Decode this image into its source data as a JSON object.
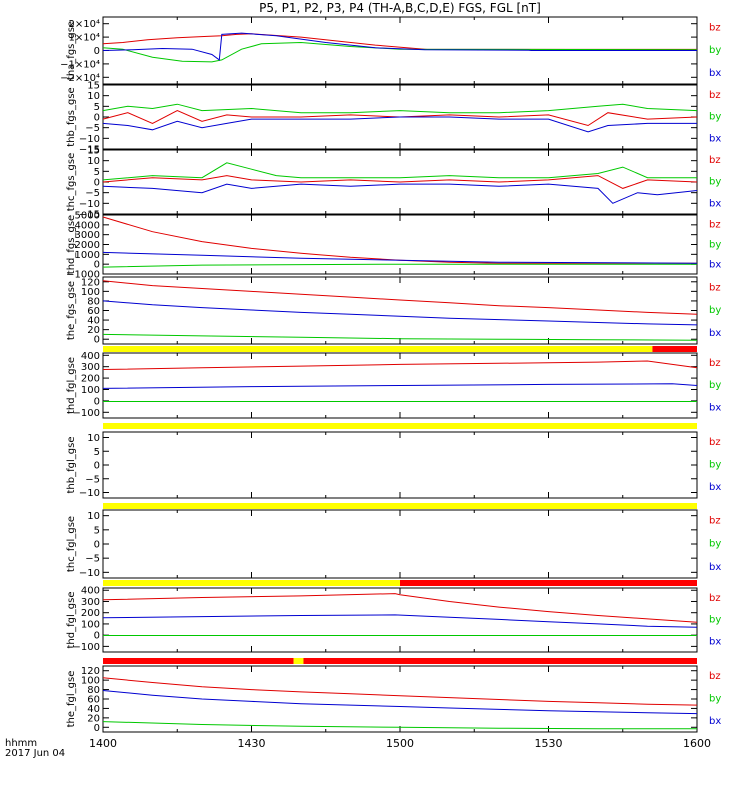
{
  "title": "P5, P1, P2, P3, P4 (TH-A,B,C,D,E) FGS, FGL [nT]",
  "footer": {
    "line1": "hhmm",
    "line2": "2017 Jun 04"
  },
  "x_ticks": [
    "1400",
    "1430",
    "1500",
    "1530",
    "1600"
  ],
  "colors": {
    "bz": "#e00000",
    "by": "#00c800",
    "bx": "#0000d0",
    "bar_yellow": "#ffff00",
    "bar_red": "#ff0000",
    "frame": "#000000"
  },
  "chart_data": [
    {
      "type": "line",
      "ylabel": "tha_fgs_gse",
      "ylim": [
        -25000,
        25000
      ],
      "yticks": [
        "2×10⁴",
        "1×10⁴",
        "0",
        "−1×10⁴",
        "−2×10⁴"
      ],
      "ytick_values": [
        20000,
        10000,
        0,
        -10000,
        -20000
      ],
      "series": [
        {
          "name": "bz",
          "x": [
            0,
            4,
            9,
            15,
            21,
            24,
            27,
            30,
            40,
            55,
            65,
            65.5,
            120
          ],
          "y": [
            5000,
            6000,
            8000,
            9500,
            10500,
            11000,
            12000,
            12500,
            10000,
            4000,
            1000,
            800,
            800
          ]
        },
        {
          "name": "by",
          "x": [
            0,
            4,
            10,
            16,
            22,
            24,
            28,
            32,
            40,
            50,
            60,
            120
          ],
          "y": [
            2000,
            1000,
            -5000,
            -8000,
            -8500,
            -7000,
            1000,
            5000,
            6000,
            3000,
            1000,
            500
          ]
        },
        {
          "name": "bx",
          "x": [
            0,
            6,
            12,
            18,
            22,
            23.5,
            24,
            28,
            35,
            45,
            55,
            65,
            86,
            86.5,
            120
          ],
          "y": [
            0,
            500,
            1500,
            1000,
            -3000,
            -7000,
            12000,
            13000,
            11000,
            6000,
            2000,
            500,
            200,
            0,
            0
          ]
        }
      ],
      "legend": [
        "bz",
        "by",
        "bx"
      ]
    },
    {
      "type": "line",
      "ylabel": "thb_fgs_gse",
      "ylim": [
        -15,
        15
      ],
      "yticks": [
        "15",
        "10",
        "5",
        "0",
        "−5",
        "−10",
        "−15"
      ],
      "ytick_values": [
        15,
        10,
        5,
        0,
        -5,
        -10,
        -15
      ],
      "series": [
        {
          "name": "bz",
          "x": [
            0,
            5,
            10,
            15,
            20,
            25,
            30,
            40,
            50,
            60,
            70,
            80,
            90,
            98,
            102,
            110,
            120
          ],
          "y": [
            -1,
            2,
            -3,
            3,
            -2,
            1,
            0,
            0,
            1,
            0,
            1,
            0,
            1,
            -4,
            2,
            -1,
            0
          ]
        },
        {
          "name": "by",
          "x": [
            0,
            5,
            10,
            15,
            20,
            30,
            40,
            50,
            60,
            70,
            80,
            90,
            100,
            105,
            110,
            120
          ],
          "y": [
            3,
            5,
            4,
            6,
            3,
            4,
            2,
            2,
            3,
            2,
            2,
            3,
            5,
            6,
            4,
            3
          ]
        },
        {
          "name": "bx",
          "x": [
            0,
            5,
            10,
            15,
            20,
            25,
            30,
            40,
            50,
            60,
            70,
            80,
            90,
            98,
            102,
            110,
            120
          ],
          "y": [
            -3,
            -4,
            -6,
            -2,
            -5,
            -3,
            -1,
            -1,
            -1,
            0,
            0,
            -1,
            -1,
            -7,
            -4,
            -3,
            -3
          ]
        }
      ],
      "legend": [
        "bz",
        "by",
        "bx"
      ]
    },
    {
      "type": "line",
      "ylabel": "thc_fgs_gse",
      "ylim": [
        -15,
        15
      ],
      "yticks": [
        "15",
        "10",
        "5",
        "0",
        "−5",
        "−10",
        "−15"
      ],
      "ytick_values": [
        15,
        10,
        5,
        0,
        -5,
        -10,
        -15
      ],
      "series": [
        {
          "name": "bz",
          "x": [
            0,
            10,
            20,
            25,
            30,
            40,
            50,
            60,
            70,
            80,
            90,
            100,
            105,
            110,
            120
          ],
          "y": [
            0,
            2,
            1,
            3,
            1,
            0,
            1,
            0,
            1,
            0,
            1,
            3,
            -3,
            1,
            0
          ]
        },
        {
          "name": "by",
          "x": [
            0,
            10,
            20,
            25,
            30,
            35,
            40,
            50,
            60,
            70,
            80,
            90,
            100,
            105,
            110,
            120
          ],
          "y": [
            1,
            3,
            2,
            9,
            6,
            3,
            2,
            2,
            2,
            3,
            2,
            2,
            4,
            7,
            2,
            2
          ]
        },
        {
          "name": "bx",
          "x": [
            0,
            10,
            20,
            25,
            30,
            40,
            50,
            60,
            70,
            80,
            90,
            100,
            103,
            108,
            112,
            120
          ],
          "y": [
            -2,
            -3,
            -5,
            -1,
            -3,
            -1,
            -2,
            -1,
            -1,
            -2,
            -1,
            -3,
            -10,
            -5,
            -6,
            -4
          ]
        }
      ],
      "legend": [
        "bz",
        "by",
        "bx"
      ]
    },
    {
      "type": "line",
      "ylabel": "thd_fgs_gse",
      "ylim": [
        -1000,
        5000
      ],
      "yticks": [
        "5000",
        "4000",
        "3000",
        "2000",
        "1000",
        "0",
        "−1000"
      ],
      "ytick_values": [
        5000,
        4000,
        3000,
        2000,
        1000,
        0,
        -1000
      ],
      "series": [
        {
          "name": "bz",
          "x": [
            0,
            10,
            20,
            30,
            40,
            50,
            60,
            70,
            80,
            120
          ],
          "y": [
            4800,
            3300,
            2300,
            1600,
            1100,
            700,
            400,
            200,
            100,
            100
          ]
        },
        {
          "name": "by",
          "x": [
            0,
            20,
            60,
            120
          ],
          "y": [
            -300,
            -100,
            0,
            0
          ]
        },
        {
          "name": "bx",
          "x": [
            0,
            20,
            40,
            60,
            80,
            120
          ],
          "y": [
            1200,
            900,
            600,
            400,
            200,
            100
          ]
        }
      ],
      "legend": [
        "bz",
        "by",
        "bx"
      ]
    },
    {
      "type": "line",
      "ylabel": "the_fgs_gse",
      "ylim": [
        -10,
        130
      ],
      "yticks": [
        "120",
        "100",
        "80",
        "60",
        "40",
        "20",
        "0"
      ],
      "ytick_values": [
        120,
        100,
        80,
        60,
        40,
        20,
        0
      ],
      "series": [
        {
          "name": "bz",
          "x": [
            0,
            10,
            20,
            30,
            40,
            50,
            60,
            70,
            80,
            90,
            100,
            110,
            120
          ],
          "y": [
            122,
            112,
            106,
            100,
            94,
            88,
            82,
            76,
            70,
            66,
            61,
            56,
            52
          ]
        },
        {
          "name": "by",
          "x": [
            0,
            20,
            40,
            60,
            80,
            100,
            120
          ],
          "y": [
            10,
            7,
            4,
            1,
            0,
            -1,
            -2
          ]
        },
        {
          "name": "bx",
          "x": [
            0,
            10,
            20,
            30,
            40,
            50,
            60,
            70,
            80,
            90,
            100,
            110,
            120
          ],
          "y": [
            80,
            72,
            66,
            61,
            56,
            52,
            48,
            44,
            41,
            38,
            35,
            32,
            30
          ]
        }
      ],
      "legend": [
        "bz",
        "by",
        "bx"
      ],
      "status_bar": [
        {
          "start": 0,
          "end": 111,
          "color": "#ffff00"
        },
        {
          "start": 111,
          "end": 120,
          "color": "#ff0000"
        }
      ]
    },
    {
      "type": "line",
      "ylabel": "thd_fgl_gse",
      "ylim": [
        -150,
        420
      ],
      "yticks": [
        "400",
        "300",
        "200",
        "100",
        "0",
        "−100"
      ],
      "ytick_values": [
        400,
        300,
        200,
        100,
        0,
        -100
      ],
      "series": [
        {
          "name": "bz",
          "x": [
            0,
            20,
            40,
            60,
            80,
            100,
            110,
            115,
            120
          ],
          "y": [
            275,
            290,
            305,
            320,
            330,
            340,
            350,
            320,
            290
          ]
        },
        {
          "name": "by",
          "x": [
            0,
            60,
            120
          ],
          "y": [
            -5,
            -5,
            -5
          ]
        },
        {
          "name": "bx",
          "x": [
            0,
            30,
            60,
            90,
            115,
            120
          ],
          "y": [
            110,
            125,
            135,
            145,
            150,
            135
          ]
        }
      ],
      "legend": [
        "bz",
        "by",
        "bx"
      ],
      "status_bar": [
        {
          "start": 0,
          "end": 120,
          "color": "#ffff00"
        }
      ]
    },
    {
      "type": "line",
      "ylabel": "thb_fgl_gse",
      "ylim": [
        -12,
        12
      ],
      "yticks": [
        "10",
        "5",
        "0",
        "−5",
        "−10"
      ],
      "ytick_values": [
        10,
        5,
        0,
        -5,
        -10
      ],
      "series": [],
      "legend": [
        "bz",
        "by",
        "bx"
      ],
      "status_bar": [
        {
          "start": 0,
          "end": 120,
          "color": "#ffff00"
        }
      ]
    },
    {
      "type": "line",
      "ylabel": "thc_fgl_gse",
      "ylim": [
        -12,
        12
      ],
      "yticks": [
        "10",
        "5",
        "0",
        "−5",
        "−10"
      ],
      "ytick_values": [
        10,
        5,
        0,
        -5,
        -10
      ],
      "series": [],
      "legend": [
        "bz",
        "by",
        "bx"
      ],
      "status_bar": [
        {
          "start": 0,
          "end": 60,
          "color": "#ffff00"
        },
        {
          "start": 60,
          "end": 120,
          "color": "#ff0000"
        }
      ]
    },
    {
      "type": "line",
      "ylabel": "thd_fgl_gse",
      "ylim": [
        -150,
        420
      ],
      "yticks": [
        "400",
        "300",
        "200",
        "100",
        "0",
        "−100"
      ],
      "ytick_values": [
        400,
        300,
        200,
        100,
        0,
        -100
      ],
      "series": [
        {
          "name": "bz",
          "x": [
            0,
            20,
            40,
            59,
            60,
            70,
            80,
            90,
            100,
            110,
            120
          ],
          "y": [
            315,
            335,
            350,
            370,
            360,
            300,
            250,
            210,
            175,
            145,
            115
          ]
        },
        {
          "name": "by",
          "x": [
            0,
            60,
            120
          ],
          "y": [
            -3,
            -3,
            -3
          ]
        },
        {
          "name": "bx",
          "x": [
            0,
            20,
            40,
            59,
            70,
            80,
            90,
            100,
            110,
            120
          ],
          "y": [
            155,
            165,
            175,
            180,
            160,
            140,
            120,
            100,
            80,
            70
          ]
        }
      ],
      "legend": [
        "bz",
        "by",
        "bx"
      ],
      "status_bar": [
        {
          "start": 0,
          "end": 38.5,
          "color": "#ff0000"
        },
        {
          "start": 38.5,
          "end": 40.5,
          "color": "#ffff00"
        },
        {
          "start": 40.5,
          "end": 120,
          "color": "#ff0000"
        }
      ]
    },
    {
      "type": "line",
      "ylabel": "the_fgl_gse",
      "ylim": [
        -10,
        130
      ],
      "yticks": [
        "120",
        "100",
        "80",
        "60",
        "40",
        "20",
        "0"
      ],
      "ytick_values": [
        120,
        100,
        80,
        60,
        40,
        20,
        0
      ],
      "series": [
        {
          "name": "bz",
          "x": [
            0,
            10,
            20,
            30,
            40,
            50,
            60,
            70,
            80,
            90,
            100,
            110,
            120
          ],
          "y": [
            105,
            95,
            86,
            80,
            75,
            71,
            67,
            63,
            59,
            55,
            52,
            49,
            47
          ]
        },
        {
          "name": "by",
          "x": [
            0,
            20,
            40,
            60,
            80,
            100,
            120
          ],
          "y": [
            12,
            6,
            2,
            0,
            -2,
            -3,
            -3
          ]
        },
        {
          "name": "bx",
          "x": [
            0,
            10,
            20,
            30,
            40,
            50,
            60,
            70,
            80,
            90,
            100,
            110,
            120
          ],
          "y": [
            78,
            68,
            60,
            55,
            50,
            47,
            44,
            41,
            38,
            35,
            33,
            31,
            29
          ]
        }
      ],
      "legend": [
        "bz",
        "by",
        "bx"
      ]
    }
  ]
}
